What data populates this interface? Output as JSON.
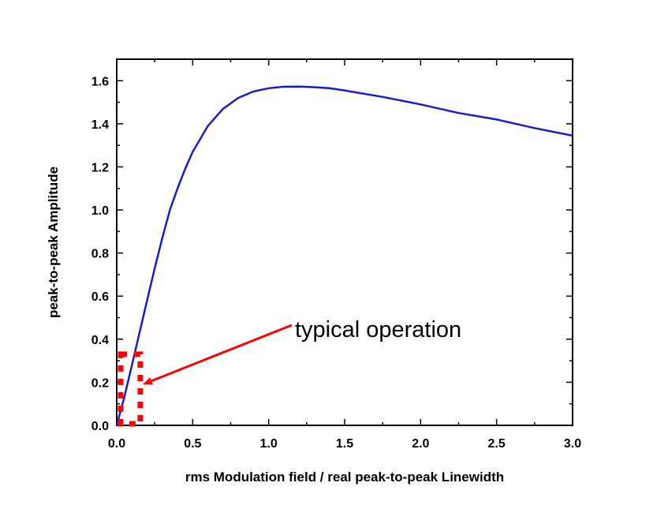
{
  "chart_data": {
    "type": "line",
    "xlabel": "rms Modulation field / real peak-to-peak Linewidth",
    "ylabel": "peak-to-peak Amplitude",
    "xlim": [
      0.0,
      3.0
    ],
    "ylim": [
      0.0,
      1.7
    ],
    "x_ticks": [
      "0.0",
      "0.5",
      "1.0",
      "1.5",
      "2.0",
      "2.5",
      "3.0"
    ],
    "y_ticks": [
      "0.0",
      "0.2",
      "0.4",
      "0.6",
      "0.8",
      "1.0",
      "1.2",
      "1.4",
      "1.6"
    ],
    "grid": false,
    "series": [
      {
        "color": "#1a1acc",
        "x": [
          0.0,
          0.05,
          0.1,
          0.15,
          0.2,
          0.25,
          0.3,
          0.35,
          0.4,
          0.45,
          0.5,
          0.6,
          0.7,
          0.8,
          0.9,
          1.0,
          1.1,
          1.2,
          1.3,
          1.4,
          1.5,
          1.75,
          2.0,
          2.25,
          2.5,
          2.75,
          3.0
        ],
        "y": [
          0.0,
          0.13,
          0.28,
          0.43,
          0.58,
          0.73,
          0.87,
          1.0,
          1.1,
          1.19,
          1.27,
          1.39,
          1.47,
          1.52,
          1.55,
          1.565,
          1.572,
          1.573,
          1.57,
          1.565,
          1.555,
          1.525,
          1.49,
          1.45,
          1.42,
          1.38,
          1.345
        ]
      }
    ],
    "annotation": {
      "text": "typical operation",
      "arrow_color": "#ff0000",
      "box_x": [
        0.0,
        0.15
      ],
      "box_y": [
        0.0,
        0.33
      ],
      "arrow_target": [
        0.15,
        0.19
      ],
      "arrow_start": [
        1.15,
        0.45
      ]
    }
  }
}
